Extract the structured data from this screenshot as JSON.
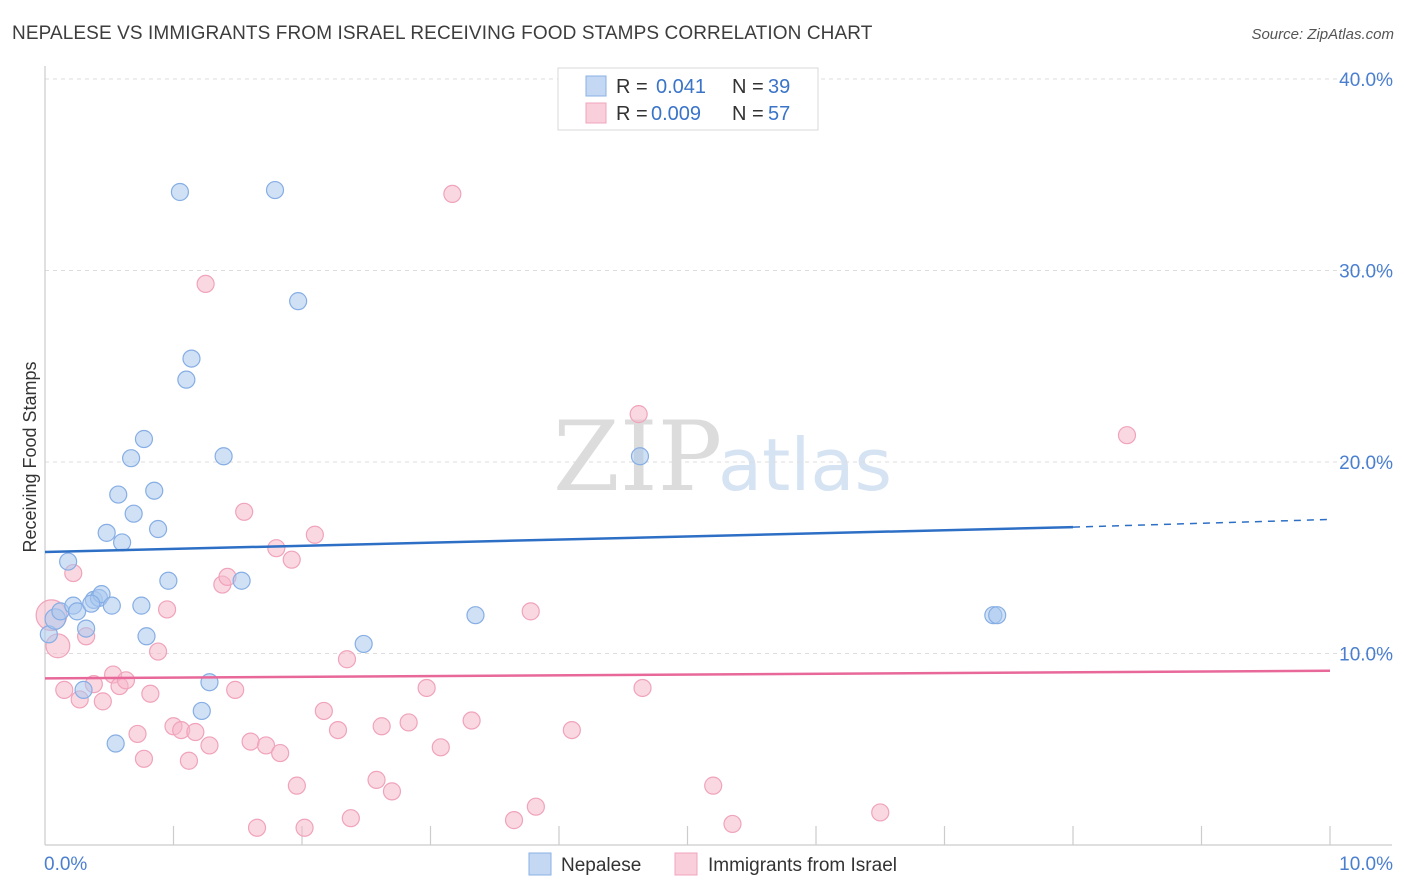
{
  "header": {
    "title": "NEPALESE VS IMMIGRANTS FROM ISRAEL RECEIVING FOOD STAMPS CORRELATION CHART",
    "source": "Source: ZipAtlas.com"
  },
  "watermark": {
    "zip": "ZIP",
    "atlas": "atlas"
  },
  "legend": {
    "rows": [
      {
        "r_label": "R =",
        "r_value": "0.041",
        "n_label": "N =",
        "n_value": "39"
      },
      {
        "r_label": "R =",
        "r_value": "0.009",
        "n_label": "N =",
        "n_value": "57"
      }
    ]
  },
  "bottom_legend": [
    "Nepalese",
    "Immigrants from Israel"
  ],
  "chart_data": {
    "type": "scatter",
    "title": "NEPALESE VS IMMIGRANTS FROM ISRAEL RECEIVING FOOD STAMPS CORRELATION CHART",
    "xlabel": "",
    "ylabel": "Receiving Food Stamps",
    "xlim": [
      0,
      10
    ],
    "ylim": [
      0,
      40
    ],
    "x_tick_labels": [
      "0.0%",
      "10.0%"
    ],
    "y_ticks": [
      10,
      20,
      30,
      40
    ],
    "y_tick_labels": [
      "10.0%",
      "20.0%",
      "30.0%",
      "40.0%"
    ],
    "grid": true,
    "legend_position": "top-center",
    "colors": {
      "nepalese": "#aac8ef",
      "nepalese_line": "#2e6fc6",
      "israel": "#f6b8ca",
      "israel_line": "#e8689a"
    },
    "series": [
      {
        "name": "Nepalese",
        "r": 0.041,
        "n": 39,
        "trend": {
          "x": [
            0,
            8,
            10
          ],
          "y": [
            15.3,
            16.6,
            17.0
          ],
          "solid_until": 8
        },
        "points": [
          {
            "x": 0.03,
            "y": 11.0,
            "s": 1
          },
          {
            "x": 0.08,
            "y": 11.8,
            "s": 1.2
          },
          {
            "x": 0.12,
            "y": 12.2,
            "s": 1
          },
          {
            "x": 0.18,
            "y": 14.8,
            "s": 1
          },
          {
            "x": 0.22,
            "y": 12.5,
            "s": 1
          },
          {
            "x": 0.25,
            "y": 12.2,
            "s": 1
          },
          {
            "x": 0.3,
            "y": 8.1,
            "s": 1
          },
          {
            "x": 0.32,
            "y": 11.3,
            "s": 1
          },
          {
            "x": 0.38,
            "y": 12.8,
            "s": 1
          },
          {
            "x": 0.42,
            "y": 12.9,
            "s": 1
          },
          {
            "x": 0.44,
            "y": 13.1,
            "s": 1
          },
          {
            "x": 0.48,
            "y": 16.3,
            "s": 1
          },
          {
            "x": 0.52,
            "y": 12.5,
            "s": 1
          },
          {
            "x": 0.55,
            "y": 5.3,
            "s": 1
          },
          {
            "x": 0.57,
            "y": 18.3,
            "s": 1
          },
          {
            "x": 0.6,
            "y": 15.8,
            "s": 1
          },
          {
            "x": 0.67,
            "y": 20.2,
            "s": 1
          },
          {
            "x": 0.69,
            "y": 17.3,
            "s": 1
          },
          {
            "x": 0.75,
            "y": 12.5,
            "s": 1
          },
          {
            "x": 0.77,
            "y": 21.2,
            "s": 1
          },
          {
            "x": 0.79,
            "y": 10.9,
            "s": 1
          },
          {
            "x": 0.85,
            "y": 18.5,
            "s": 1
          },
          {
            "x": 0.88,
            "y": 16.5,
            "s": 1
          },
          {
            "x": 0.96,
            "y": 13.8,
            "s": 1
          },
          {
            "x": 1.05,
            "y": 34.1,
            "s": 1
          },
          {
            "x": 1.1,
            "y": 24.3,
            "s": 1
          },
          {
            "x": 1.14,
            "y": 25.4,
            "s": 1
          },
          {
            "x": 1.22,
            "y": 7.0,
            "s": 1
          },
          {
            "x": 1.28,
            "y": 8.5,
            "s": 1
          },
          {
            "x": 1.39,
            "y": 20.3,
            "s": 1
          },
          {
            "x": 1.53,
            "y": 13.8,
            "s": 1
          },
          {
            "x": 1.79,
            "y": 34.2,
            "s": 1
          },
          {
            "x": 1.97,
            "y": 28.4,
            "s": 1
          },
          {
            "x": 2.48,
            "y": 10.5,
            "s": 1
          },
          {
            "x": 3.35,
            "y": 12.0,
            "s": 1
          },
          {
            "x": 4.63,
            "y": 20.3,
            "s": 1
          },
          {
            "x": 7.38,
            "y": 12.0,
            "s": 1
          },
          {
            "x": 7.41,
            "y": 12.0,
            "s": 1
          },
          {
            "x": 0.36,
            "y": 12.6,
            "s": 1
          }
        ]
      },
      {
        "name": "Immigrants from Israel",
        "r": 0.009,
        "n": 57,
        "trend": {
          "x": [
            0,
            10
          ],
          "y": [
            8.7,
            9.1
          ]
        },
        "points": [
          {
            "x": 0.05,
            "y": 12.0,
            "s": 1.8
          },
          {
            "x": 0.1,
            "y": 10.4,
            "s": 1.4
          },
          {
            "x": 0.15,
            "y": 8.1,
            "s": 1
          },
          {
            "x": 0.22,
            "y": 14.2,
            "s": 1
          },
          {
            "x": 0.27,
            "y": 7.6,
            "s": 1
          },
          {
            "x": 0.32,
            "y": 10.9,
            "s": 1
          },
          {
            "x": 0.38,
            "y": 8.4,
            "s": 1
          },
          {
            "x": 0.45,
            "y": 7.5,
            "s": 1
          },
          {
            "x": 0.53,
            "y": 8.9,
            "s": 1
          },
          {
            "x": 0.58,
            "y": 8.3,
            "s": 1
          },
          {
            "x": 0.63,
            "y": 8.6,
            "s": 1
          },
          {
            "x": 0.72,
            "y": 5.8,
            "s": 1
          },
          {
            "x": 0.77,
            "y": 4.5,
            "s": 1
          },
          {
            "x": 0.82,
            "y": 7.9,
            "s": 1
          },
          {
            "x": 0.88,
            "y": 10.1,
            "s": 1
          },
          {
            "x": 0.95,
            "y": 12.3,
            "s": 1
          },
          {
            "x": 1.0,
            "y": 6.2,
            "s": 1
          },
          {
            "x": 1.06,
            "y": 6.0,
            "s": 1
          },
          {
            "x": 1.12,
            "y": 4.4,
            "s": 1
          },
          {
            "x": 1.17,
            "y": 5.9,
            "s": 1
          },
          {
            "x": 1.25,
            "y": 29.3,
            "s": 1
          },
          {
            "x": 1.28,
            "y": 5.2,
            "s": 1
          },
          {
            "x": 1.38,
            "y": 13.6,
            "s": 1
          },
          {
            "x": 1.42,
            "y": 14.0,
            "s": 1
          },
          {
            "x": 1.48,
            "y": 8.1,
            "s": 1
          },
          {
            "x": 1.55,
            "y": 17.4,
            "s": 1
          },
          {
            "x": 1.6,
            "y": 5.4,
            "s": 1
          },
          {
            "x": 1.65,
            "y": 0.9,
            "s": 1
          },
          {
            "x": 1.72,
            "y": 5.2,
            "s": 1
          },
          {
            "x": 1.8,
            "y": 15.5,
            "s": 1
          },
          {
            "x": 1.83,
            "y": 4.8,
            "s": 1
          },
          {
            "x": 1.92,
            "y": 14.9,
            "s": 1
          },
          {
            "x": 1.96,
            "y": 3.1,
            "s": 1
          },
          {
            "x": 2.02,
            "y": 0.9,
            "s": 1
          },
          {
            "x": 2.1,
            "y": 16.2,
            "s": 1
          },
          {
            "x": 2.17,
            "y": 7.0,
            "s": 1
          },
          {
            "x": 2.28,
            "y": 6.0,
            "s": 1
          },
          {
            "x": 2.35,
            "y": 9.7,
            "s": 1
          },
          {
            "x": 2.38,
            "y": 1.4,
            "s": 1
          },
          {
            "x": 2.58,
            "y": 3.4,
            "s": 1
          },
          {
            "x": 2.62,
            "y": 6.2,
            "s": 1
          },
          {
            "x": 2.7,
            "y": 2.8,
            "s": 1
          },
          {
            "x": 2.83,
            "y": 6.4,
            "s": 1
          },
          {
            "x": 2.97,
            "y": 8.2,
            "s": 1
          },
          {
            "x": 3.08,
            "y": 5.1,
            "s": 1
          },
          {
            "x": 3.17,
            "y": 34.0,
            "s": 1
          },
          {
            "x": 3.32,
            "y": 6.5,
            "s": 1
          },
          {
            "x": 3.65,
            "y": 1.3,
            "s": 1
          },
          {
            "x": 3.78,
            "y": 12.2,
            "s": 1
          },
          {
            "x": 3.82,
            "y": 2.0,
            "s": 1
          },
          {
            "x": 4.1,
            "y": 6.0,
            "s": 1
          },
          {
            "x": 4.62,
            "y": 22.5,
            "s": 1
          },
          {
            "x": 4.65,
            "y": 8.2,
            "s": 1
          },
          {
            "x": 5.2,
            "y": 3.1,
            "s": 1
          },
          {
            "x": 5.35,
            "y": 1.1,
            "s": 1
          },
          {
            "x": 6.5,
            "y": 1.7,
            "s": 1
          },
          {
            "x": 8.42,
            "y": 21.4,
            "s": 1
          }
        ]
      }
    ]
  }
}
